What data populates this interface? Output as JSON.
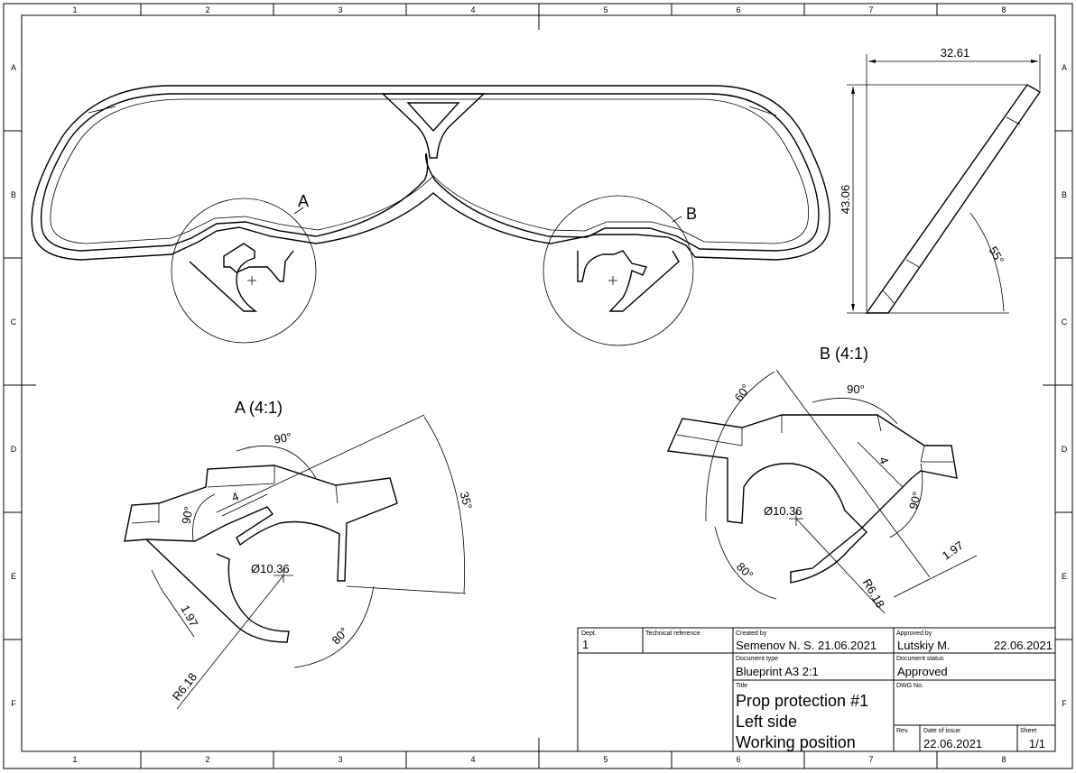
{
  "grid": {
    "columns": [
      "1",
      "2",
      "3",
      "4",
      "5",
      "6",
      "7",
      "8"
    ],
    "rows": [
      "A",
      "B",
      "C",
      "D",
      "E",
      "F"
    ]
  },
  "views": {
    "detail_a_marker": "A",
    "detail_b_marker": "B",
    "detail_a_title": "A (4:1)",
    "detail_b_title": "B (4:1)"
  },
  "dimensions": {
    "side_width": "32.61",
    "side_height": "43.06",
    "side_angle": "55°",
    "a_angle_90": "90°",
    "a_angle_90b": "90°",
    "a_width_4": "4",
    "a_angle_35": "35°",
    "a_diameter": "Ø10.36",
    "a_thickness": "1.97",
    "a_angle_80": "80°",
    "a_radius": "R6.18",
    "b_angle_60": "60°",
    "b_angle_90": "90°",
    "b_width_4": "4",
    "b_diameter": "Ø10.36",
    "b_angle_90b": "90°",
    "b_thickness": "1.97",
    "b_angle_80": "80°",
    "b_radius": "R6.18"
  },
  "title_block": {
    "dept_label": "Dept.",
    "dept_value": "1",
    "tech_ref_label": "Technical reference",
    "created_by_label": "Created by",
    "created_by_value": "Semenov N. S. 21.06.2021",
    "approved_by_label": "Approved by",
    "approved_by_name": "Lutskiy M.",
    "approved_by_date": "22.06.2021",
    "doc_type_label": "Document type",
    "doc_type_value": "Blueprint A3 2:1",
    "doc_status_label": "Document status",
    "doc_status_value": "Approved",
    "title_label": "Title",
    "title_line1": "Prop protection #1",
    "title_line2": "Left side",
    "title_line3": "Working position",
    "dwg_label": "DWG No.",
    "rev_label": "Rev.",
    "issue_label": "Date of issue",
    "issue_value": "22.06.2021",
    "sheet_label": "Sheet",
    "sheet_value": "1/1"
  }
}
